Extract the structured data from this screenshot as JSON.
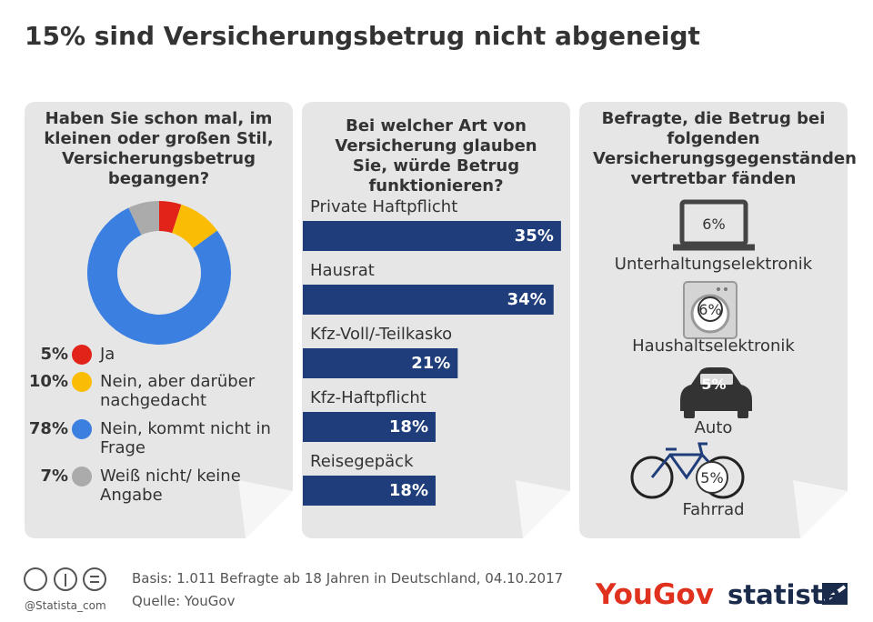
{
  "title": "15% sind Versicherungsbetrug nicht abgeneigt",
  "chart_data": [
    {
      "type": "donut",
      "title": "Haben Sie schon mal, im kleinen oder großen Stil, Versicherungsbetrug begangen?",
      "categories": [
        "Ja",
        "Nein, aber darüber nachgedacht",
        "Nein, kommt nicht in Frage",
        "Weiß nicht/ keine Angabe"
      ],
      "values": [
        5,
        10,
        78,
        7
      ],
      "value_labels": [
        "5%",
        "10%",
        "78%",
        "7%"
      ],
      "colors": [
        "#e2231a",
        "#fbbc05",
        "#3b7fe1",
        "#ababab"
      ]
    },
    {
      "type": "hbar",
      "title": "Bei welcher Art von Versicherung glauben Sie, würde Betrug funktionieren?",
      "categories": [
        "Private Haftpflicht",
        "Hausrat",
        "Kfz-Voll/-Teilkasko",
        "Kfz-Haftpflicht",
        "Reisegepäck"
      ],
      "values": [
        35,
        34,
        21,
        18,
        18
      ],
      "value_labels": [
        "35%",
        "34%",
        "21%",
        "18%",
        "18%"
      ],
      "color": "#1f3d7a",
      "xlim": [
        0,
        36
      ]
    },
    {
      "type": "pictogram",
      "title": "Befragte, die Betrug bei folgenden Versicherungsgegenständen vertretbar fänden",
      "categories": [
        "Unterhaltungselektronik",
        "Haushaltselektronik",
        "Auto",
        "Fahrrad"
      ],
      "values": [
        6,
        6,
        5,
        5
      ],
      "value_labels": [
        "6%",
        "6%",
        "5%",
        "5%"
      ]
    }
  ],
  "footer": {
    "basis": "Basis: 1.011 Befragte ab 18 Jahren in Deutschland, 04.10.2017",
    "source": "Quelle: YouGov",
    "handle": "@Statista_com",
    "brand_left": "YouGov",
    "brand_right": "statista"
  }
}
